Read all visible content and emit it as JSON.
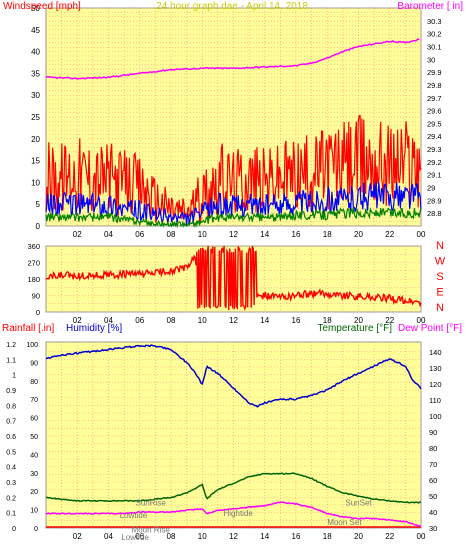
{
  "chart_data": [
    {
      "type": "line",
      "id": "wind-baro",
      "title": "24 hour graph dae - April 14, 2018",
      "ylabel_left": "Windspeed [mph]",
      "ylabel_right": "Barometer [ in]",
      "x_ticks": [
        "02",
        "04",
        "06",
        "08",
        "10",
        "12",
        "14",
        "16",
        "18",
        "20",
        "22",
        "00"
      ],
      "xlim": [
        0,
        24
      ],
      "ylim_left": [
        0,
        50
      ],
      "ylim_right": [
        28.7,
        30.4
      ],
      "yticks_left": [
        "0",
        "5",
        "10",
        "15",
        "20",
        "25",
        "30",
        "35",
        "40",
        "45",
        "50"
      ],
      "yticks_right": [
        "28.8",
        "28.9",
        "29",
        "29.1",
        "29.2",
        "29.3",
        "29.4",
        "29.5",
        "29.6",
        "29.7",
        "29.8",
        "29.9",
        "30",
        "30.1",
        "30.2",
        "30.3"
      ],
      "series": [
        {
          "axis": "right",
          "color": "#ff00ff",
          "x": [
            0,
            2,
            4,
            6,
            8,
            10,
            12,
            14,
            16,
            17,
            18,
            19,
            20,
            21,
            22,
            23,
            24
          ],
          "y": [
            29.86,
            29.85,
            29.86,
            29.89,
            29.92,
            29.93,
            29.93,
            29.94,
            29.95,
            29.97,
            30.01,
            30.06,
            30.1,
            30.12,
            30.14,
            30.13,
            30.16
          ]
        },
        {
          "kind": "gust",
          "color": "#ff0000",
          "x": [
            0,
            1,
            2,
            3,
            4,
            5,
            6,
            7,
            8,
            9,
            10,
            11,
            12,
            13,
            14,
            15,
            16,
            17,
            18,
            19,
            20,
            21,
            22,
            23,
            24
          ],
          "y": [
            11,
            11,
            12,
            11,
            11,
            10,
            9,
            6,
            4,
            3,
            7,
            11,
            10,
            11,
            10,
            11,
            12,
            12,
            14,
            14,
            15,
            15,
            14,
            15,
            15
          ]
        },
        {
          "kind": "avg",
          "color": "#0000ff",
          "x": [
            0,
            1,
            2,
            3,
            4,
            5,
            6,
            7,
            8,
            9,
            10,
            11,
            12,
            13,
            14,
            15,
            16,
            17,
            18,
            19,
            20,
            21,
            22,
            23,
            24
          ],
          "y": [
            5,
            5,
            5,
            5,
            5,
            4,
            3.5,
            2.5,
            2,
            1.5,
            3,
            5,
            4.5,
            5,
            4.5,
            5,
            5.5,
            5.5,
            6,
            6,
            6.5,
            7,
            6.5,
            7,
            7
          ]
        },
        {
          "kind": "min",
          "color": "#008000",
          "x": [
            0,
            1,
            2,
            3,
            4,
            5,
            6,
            7,
            8,
            9,
            10,
            11,
            12,
            13,
            14,
            15,
            16,
            17,
            18,
            19,
            20,
            21,
            22,
            23,
            24
          ],
          "y": [
            2,
            2,
            2,
            2,
            2,
            1.5,
            1,
            0.5,
            0.3,
            0.3,
            1,
            2,
            2,
            2,
            2,
            2,
            2.5,
            2.5,
            2.5,
            3,
            3,
            3,
            3,
            3,
            3
          ]
        }
      ]
    },
    {
      "type": "scatter",
      "id": "wind-direction",
      "x_ticks": [
        "02",
        "04",
        "06",
        "08",
        "10",
        "12",
        "14",
        "16",
        "18",
        "20",
        "22",
        "00"
      ],
      "xlim": [
        0,
        24
      ],
      "ylim": [
        0,
        360
      ],
      "yticks": [
        "0",
        "90",
        "180",
        "270",
        "360"
      ],
      "compass_labels": [
        "N",
        "W",
        "S",
        "E",
        "N"
      ],
      "series": [
        {
          "color": "#ff0000",
          "x": [
            0,
            1,
            2,
            3,
            4,
            5,
            6,
            7,
            8,
            9,
            9.5,
            10,
            10.5,
            11,
            12,
            13,
            14,
            15,
            16,
            17,
            18,
            19,
            20,
            21,
            22,
            23,
            24
          ],
          "y": [
            190,
            200,
            195,
            200,
            200,
            205,
            205,
            215,
            225,
            240,
            300,
            20,
            350,
            15,
            340,
            60,
            90,
            80,
            90,
            100,
            100,
            90,
            85,
            80,
            75,
            60,
            50
          ]
        }
      ]
    },
    {
      "type": "line",
      "id": "rain-humidity-temp",
      "ylabel_rainfall": "Rainfall [.in]",
      "ylabel_humidity": "Humidity [%]",
      "ylabel_temperature": "Temperature [°F]",
      "ylabel_dewpoint": "Dew Point [°F]",
      "x_ticks": [
        "02",
        "04",
        "06",
        "08",
        "10",
        "12",
        "14",
        "16",
        "18",
        "20",
        "22",
        "00"
      ],
      "xlim": [
        0,
        24
      ],
      "rain_ticks": [
        "0",
        "0.1",
        "0.2",
        "0.3",
        "0.4",
        "0.5",
        "0.6",
        "0.7",
        "0.8",
        "0.9",
        "1",
        "1.1",
        "1.2"
      ],
      "humidity_ticks": [
        "0",
        "10",
        "20",
        "30",
        "40",
        "50",
        "60",
        "70",
        "80",
        "90",
        "100"
      ],
      "temp_ticks": [
        "30",
        "40",
        "50",
        "60",
        "70",
        "80",
        "90",
        "100",
        "110",
        "120",
        "130",
        "140"
      ],
      "humidity_range": [
        0,
        100
      ],
      "temp_range": [
        30,
        145
      ],
      "series": [
        {
          "name": "Humidity",
          "axis": "humidity",
          "color": "#0000cc",
          "x": [
            0,
            1,
            2,
            3,
            4,
            5,
            6,
            7,
            8,
            9,
            9.5,
            10,
            10.3,
            10.6,
            11,
            12,
            13,
            13.5,
            14,
            15,
            16,
            17,
            18,
            19,
            20,
            21,
            22,
            23,
            23.5,
            24
          ],
          "y": [
            92,
            94,
            95,
            96,
            97,
            98,
            99,
            99,
            97,
            90,
            85,
            78,
            88,
            86,
            84,
            76,
            68,
            66,
            68,
            70,
            70,
            72,
            75,
            80,
            84,
            88,
            92,
            88,
            80,
            76
          ]
        },
        {
          "name": "Temperature",
          "axis": "temp",
          "color": "#006400",
          "x": [
            0,
            1,
            2,
            3,
            4,
            5,
            6,
            7,
            8,
            9,
            10,
            10.3,
            10.6,
            11,
            12,
            13,
            14,
            15,
            16,
            17,
            18,
            19,
            20,
            21,
            22,
            23,
            24
          ],
          "y": [
            49,
            48,
            47,
            47,
            47,
            47,
            47,
            48,
            49,
            52,
            57,
            48,
            51,
            54,
            58,
            62,
            64,
            64,
            64,
            61,
            56,
            52,
            50,
            48,
            47,
            46,
            46
          ]
        },
        {
          "name": "Dew Point",
          "axis": "temp",
          "color": "#ff00ff",
          "x": [
            0,
            1,
            2,
            3,
            4,
            5,
            6,
            7,
            8,
            9,
            10,
            10.3,
            11,
            12,
            13,
            14,
            15,
            16,
            17,
            18,
            19,
            20,
            21,
            22,
            23,
            24
          ],
          "y": [
            39,
            39,
            39,
            39,
            39,
            39,
            40,
            40,
            40,
            41,
            42,
            39,
            41,
            42,
            43,
            44,
            46,
            45,
            43,
            39,
            37,
            36,
            36,
            35,
            34,
            31
          ]
        }
      ],
      "annotations": [
        {
          "text": "SunRise",
          "x": 6.7,
          "y_frac": 0.88
        },
        {
          "text": "Lowtide",
          "x": 5.6,
          "y_frac": 0.945
        },
        {
          "text": "Moon Rise",
          "x": 6.7,
          "y_frac": 1.025
        },
        {
          "text": "Lowtide",
          "x": 5.7,
          "y_frac": 1.065
        },
        {
          "text": "Hightide",
          "x": 12.3,
          "y_frac": 0.935
        },
        {
          "text": "SunSet",
          "x": 20.0,
          "y_frac": 0.88
        },
        {
          "text": "Moon Set",
          "x": 19.1,
          "y_frac": 0.985
        }
      ]
    }
  ],
  "colors": {
    "plot_bg": "#ffff99",
    "grid": "#ff8888",
    "wind_label": "#ff0000",
    "baro_label": "#ff00ff",
    "title": "#cccc00",
    "compass": "#ff0000",
    "rain_label": "#ff0000",
    "humidity_label": "#0000cc",
    "temp_label": "#006400",
    "dew_label": "#ff00ff"
  }
}
